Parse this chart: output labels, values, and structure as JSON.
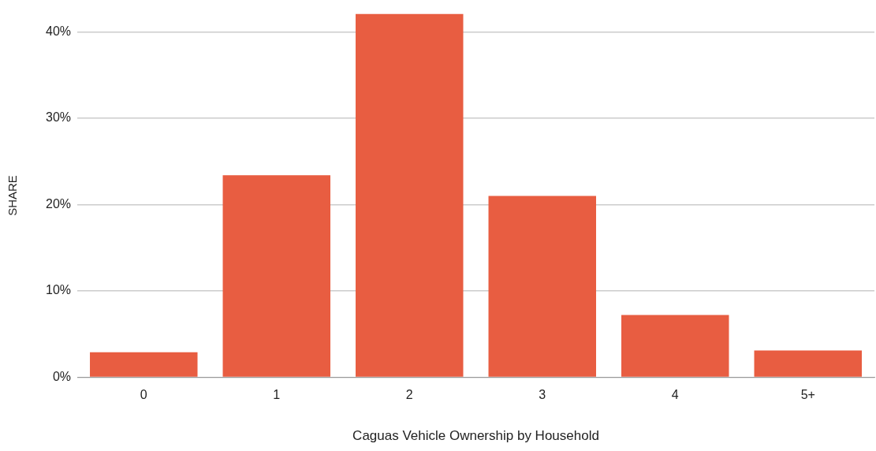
{
  "chart_data": {
    "type": "bar",
    "xlabel": "Caguas Vehicle Ownership by Household",
    "ylabel": "SHARE",
    "categories": [
      "0",
      "1",
      "2",
      "3",
      "4",
      "5+"
    ],
    "values": [
      2.9,
      23.4,
      42.1,
      21.0,
      7.2,
      3.1
    ],
    "color": "#e85d41",
    "ylim": [
      0,
      42.1
    ],
    "yticks": [
      {
        "value": 0,
        "label": "0%"
      },
      {
        "value": 10,
        "label": "10%"
      },
      {
        "value": 20,
        "label": "20%"
      },
      {
        "value": 30,
        "label": "30%"
      },
      {
        "value": 40,
        "label": "40%"
      }
    ],
    "grid": "y",
    "legend": false
  }
}
